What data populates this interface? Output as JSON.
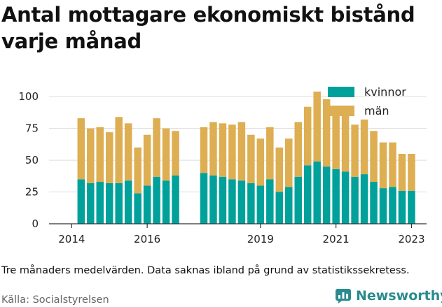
{
  "title": "Antal mottagare ekonomiskt bistånd varje månad",
  "note": "Tre månaders medelvärden. Data saknas ibland på grund av statistikssekretess.",
  "source": "Källa: Socialstyrelsen",
  "brand": {
    "name": "Newsworthy",
    "icon": "newsworthy-logo-icon",
    "color": "#2a8b8e"
  },
  "chart_data": {
    "type": "bar",
    "stacked": true,
    "title": "",
    "xlabel": "",
    "ylabel": "",
    "ylim": [
      0,
      110
    ],
    "yticks": [
      0,
      25,
      50,
      75,
      100
    ],
    "xticks": [
      {
        "label": "2014",
        "x": 2014.0
      },
      {
        "label": "2016",
        "x": 2016.0
      },
      {
        "label": "2019",
        "x": 2019.0
      },
      {
        "label": "2021",
        "x": 2021.0
      },
      {
        "label": "2023",
        "x": 2023.0
      }
    ],
    "grid": true,
    "legend_position": "top-right",
    "colors": {
      "kvinnor": "#00a19a",
      "män": "#ddae52",
      "grid": "#dddddd",
      "axis": "#333333"
    },
    "x": [
      2014.25,
      2014.5,
      2014.75,
      2015.0,
      2015.25,
      2015.5,
      2015.75,
      2016.0,
      2016.25,
      2016.5,
      2016.75,
      2017.5,
      2017.75,
      2018.0,
      2018.25,
      2018.5,
      2018.75,
      2019.0,
      2019.25,
      2019.5,
      2019.75,
      2020.0,
      2020.25,
      2020.5,
      2020.75,
      2021.0,
      2021.25,
      2021.5,
      2021.75,
      2022.0,
      2022.25,
      2022.5,
      2022.75,
      2023.0
    ],
    "series": [
      {
        "name": "kvinnor",
        "values": [
          35,
          32,
          33,
          32,
          32,
          34,
          24,
          30,
          37,
          34,
          38,
          40,
          38,
          37,
          35,
          34,
          32,
          30,
          35,
          25,
          29,
          37,
          46,
          49,
          45,
          43,
          41,
          37,
          39,
          33,
          28,
          29,
          26,
          26
        ]
      },
      {
        "name": "män",
        "values": [
          48,
          43,
          43,
          40,
          52,
          45,
          36,
          40,
          46,
          41,
          35,
          36,
          42,
          42,
          43,
          46,
          38,
          37,
          41,
          35,
          38,
          43,
          46,
          55,
          53,
          48,
          44,
          41,
          43,
          40,
          36,
          35,
          29,
          29
        ]
      }
    ]
  }
}
